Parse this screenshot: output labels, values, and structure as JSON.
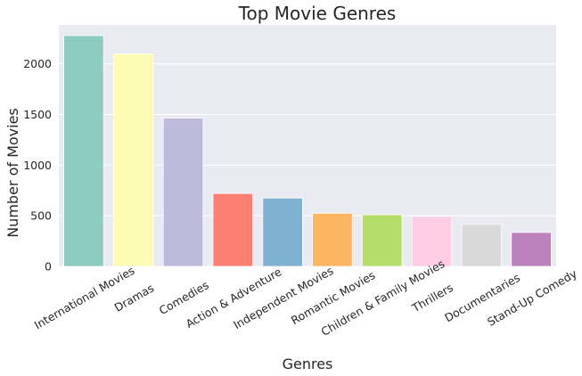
{
  "chart_data": {
    "type": "bar",
    "title": "Top Movie Genres",
    "xlabel": "Genres",
    "ylabel": "Number of Movies",
    "categories": [
      "International Movies",
      "Dramas",
      "Comedies",
      "Action & Adventure",
      "Independent Movies",
      "Romantic Movies",
      "Children & Family Movies",
      "Thrillers",
      "Documentaries",
      "Stand-Up Comedy"
    ],
    "values": [
      2280,
      2100,
      1465,
      720,
      675,
      525,
      510,
      495,
      415,
      335
    ],
    "ylim": [
      0,
      2385
    ],
    "yticks": [
      0,
      500,
      1000,
      1500,
      2000
    ],
    "colors": [
      "#8DCCC1",
      "#FBFBB3",
      "#BEBADB",
      "#FB8073",
      "#80B1D3",
      "#FDB462",
      "#B3DE69",
      "#FCCDE5",
      "#D9D9D9",
      "#BC80BD"
    ],
    "background": "#EAEAF2",
    "grid": true,
    "legend": "none"
  }
}
